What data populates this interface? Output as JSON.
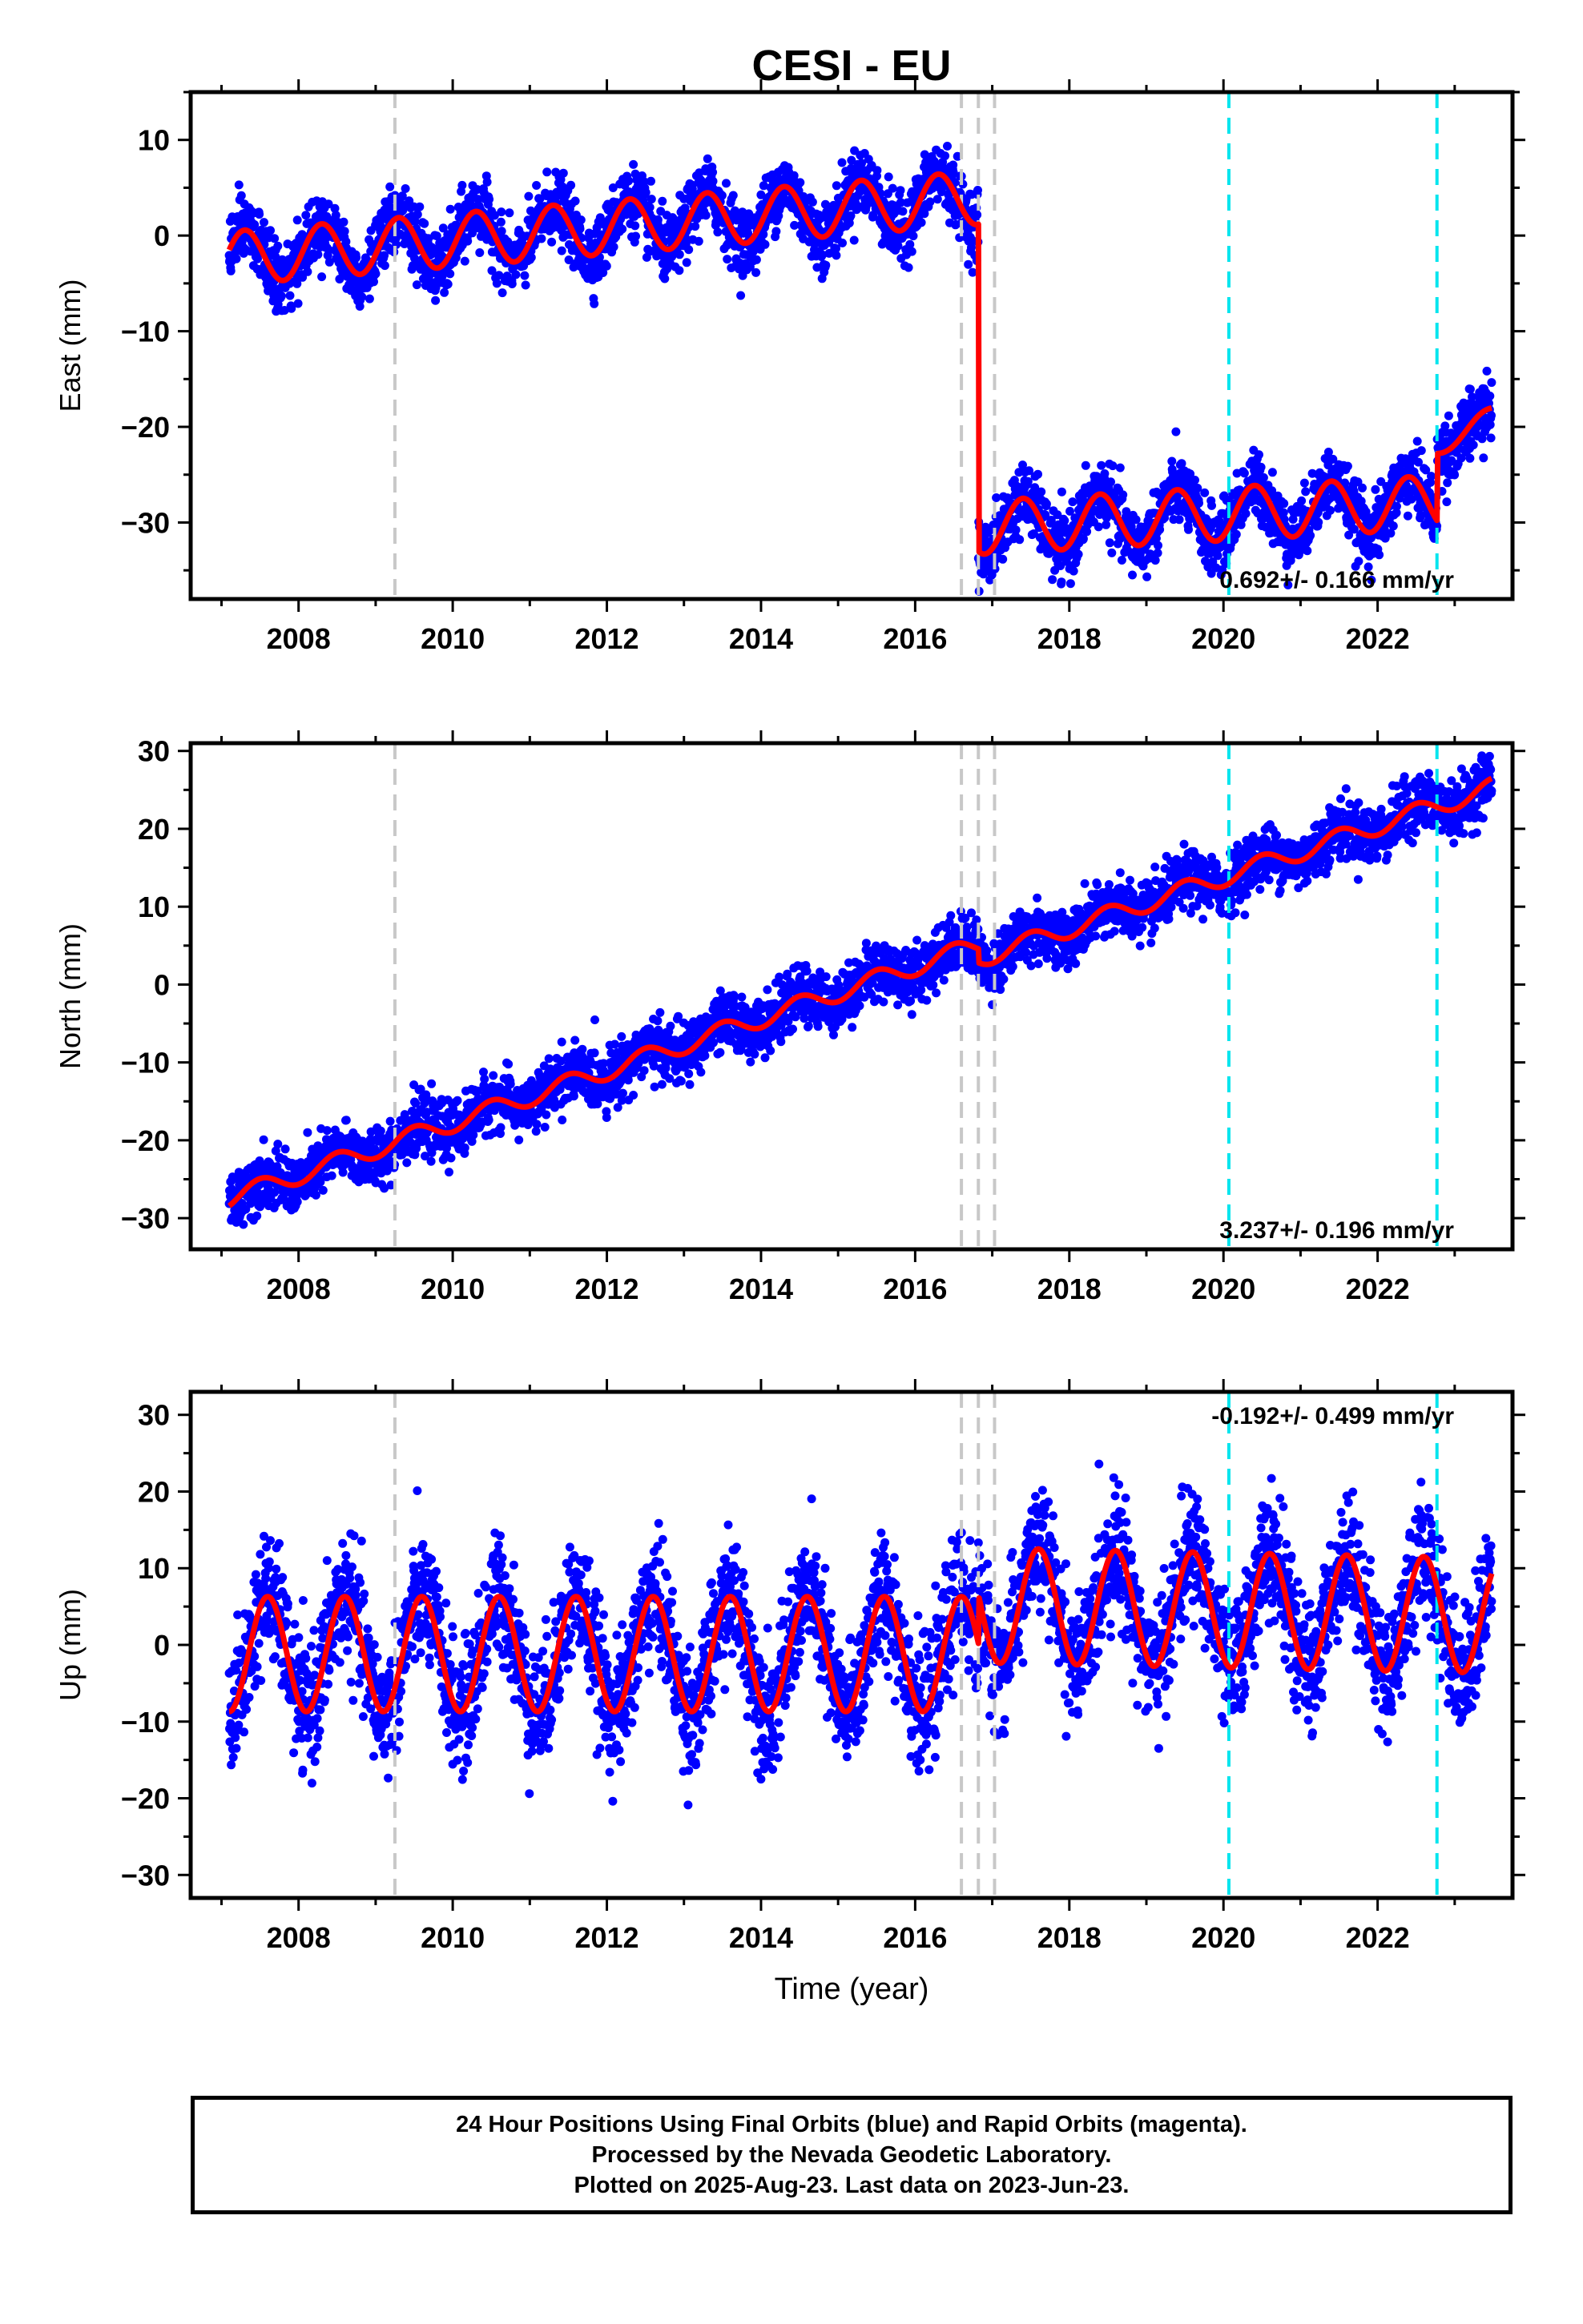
{
  "figure": {
    "title": "CESI - EU",
    "xlabel": "Time (year)",
    "footer": [
      "24 Hour Positions Using Final Orbits (blue) and Rapid Orbits (magenta).",
      "Processed by the Nevada Geodetic Laboratory.",
      "Plotted on 2025-Aug-23. Last data on 2023-Jun-23."
    ],
    "colors": {
      "points": "#0000ff",
      "model": "#ff0000",
      "equipment_change": "#c8c8c8",
      "earthquake": "#00e5ee"
    }
  },
  "chart_data": [
    {
      "type": "scatter",
      "title": "CESI - EU",
      "ylabel": "East (mm)",
      "xlim": [
        2006.6,
        2023.75
      ],
      "ylim": [
        -38,
        15
      ],
      "xticks": [
        2008,
        2010,
        2012,
        2014,
        2016,
        2018,
        2020,
        2022
      ],
      "yticks": [
        10,
        0,
        -10,
        -20,
        -30
      ],
      "rate_label": "0.692+/- 0.166 mm/yr",
      "rate_position": "bottom-right",
      "data_start": 2007.1,
      "data_end": 2023.48,
      "equipment_changes": [
        2009.25,
        2016.6,
        2016.82,
        2017.03
      ],
      "earthquakes": [
        2020.07,
        2022.77
      ],
      "model": {
        "segments": [
          {
            "start": 2007.1,
            "end": 2016.82,
            "offset": 0.8,
            "trend": 0.65,
            "amplitude": 2.8,
            "phase_peak": 0.3
          },
          {
            "start": 2016.82,
            "end": 2022.77,
            "offset": -29.2,
            "trend": 0.45,
            "amplitude": 2.8,
            "phase_peak": 0.4
          },
          {
            "start": 2022.77,
            "end": 2023.48,
            "offset": -20.5,
            "trend": 4.5,
            "amplitude": 1.0,
            "phase_peak": 0.4
          }
        ],
        "scatter_sd": 1.7
      }
    },
    {
      "type": "scatter",
      "ylabel": "North (mm)",
      "xlim": [
        2006.6,
        2023.75
      ],
      "ylim": [
        -34,
        31
      ],
      "xticks": [
        2008,
        2010,
        2012,
        2014,
        2016,
        2018,
        2020,
        2022
      ],
      "yticks": [
        30,
        20,
        10,
        0,
        -10,
        -20,
        -30
      ],
      "rate_label": "3.237+/- 0.196 mm/yr",
      "rate_position": "bottom-right",
      "data_start": 2007.1,
      "data_end": 2023.48,
      "equipment_changes": [
        2009.25,
        2016.6,
        2016.82,
        2017.03
      ],
      "earthquakes": [
        2020.07,
        2022.77
      ],
      "model": {
        "segments": [
          {
            "start": 2007.1,
            "end": 2016.82,
            "ref_year": 2015.0,
            "offset": -1.0,
            "trend": 3.35,
            "amplitude": 1.2,
            "phase_peak": 0.5
          },
          {
            "start": 2016.82,
            "end": 2023.48,
            "ref_year": 2020.0,
            "offset": 13.8,
            "trend": 3.3,
            "amplitude": 1.2,
            "phase_peak": 0.5
          }
        ],
        "scatter_sd": 1.8
      }
    },
    {
      "type": "scatter",
      "ylabel": "Up (mm)",
      "xlim": [
        2006.6,
        2023.75
      ],
      "ylim": [
        -33,
        33
      ],
      "xticks": [
        2008,
        2010,
        2012,
        2014,
        2016,
        2018,
        2020,
        2022
      ],
      "yticks": [
        30,
        20,
        10,
        0,
        -10,
        -20,
        -30
      ],
      "rate_label": "-0.192+/- 0.499 mm/yr",
      "rate_position": "top-right",
      "data_start": 2007.1,
      "data_end": 2023.48,
      "equipment_changes": [
        2009.25,
        2016.6,
        2016.82,
        2017.03
      ],
      "earthquakes": [
        2020.07,
        2022.77
      ],
      "model": {
        "segments": [
          {
            "start": 2007.1,
            "end": 2016.82,
            "offset": -1.2,
            "trend": 0.0,
            "amplitude": 7.5,
            "phase_peak": 0.6
          },
          {
            "start": 2016.82,
            "end": 2023.48,
            "offset": 4.5,
            "trend": -0.2,
            "amplitude": 7.5,
            "phase_peak": 0.6
          }
        ],
        "scatter_sd": 4.0
      }
    }
  ]
}
